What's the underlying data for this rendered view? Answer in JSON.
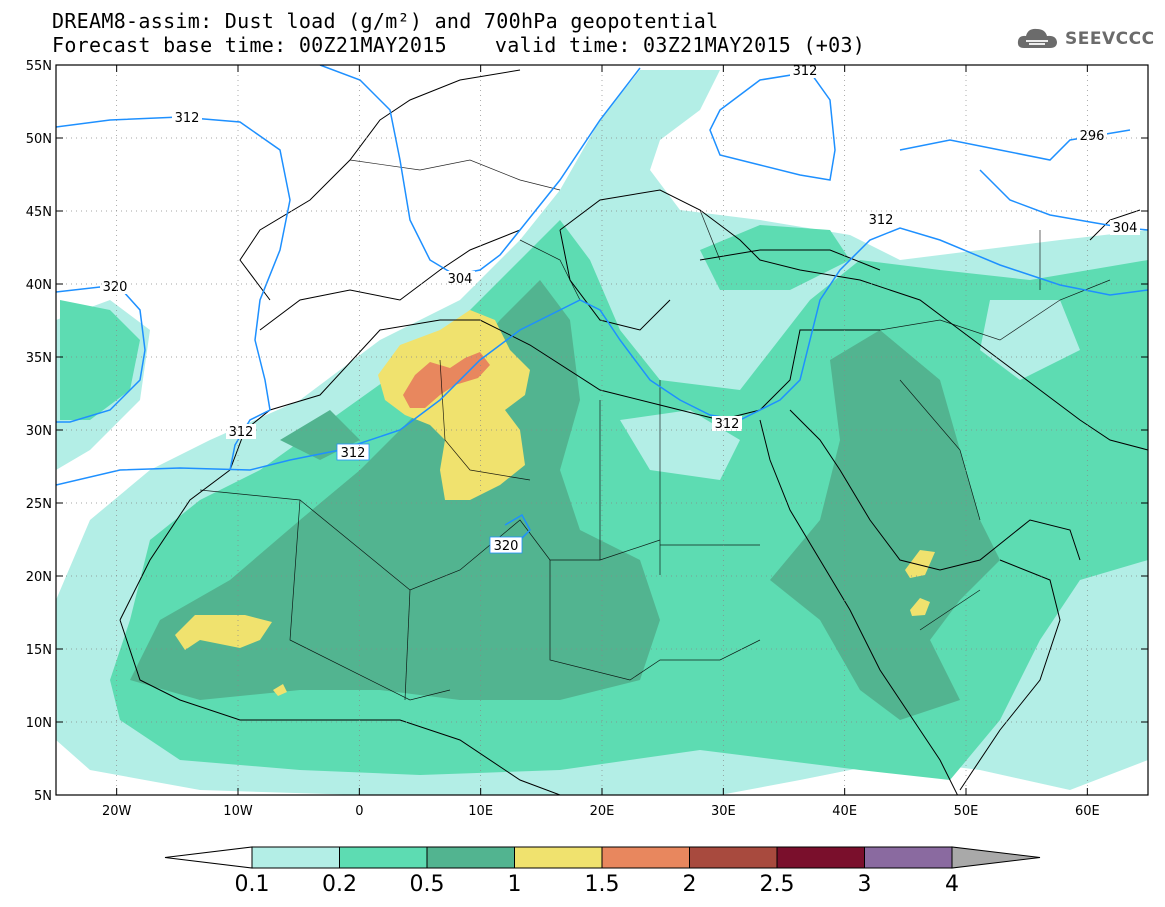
{
  "header": {
    "title_line1": "DREAM8-assim: Dust load (g/m²) and 700hPa geopotential",
    "base_time": "Forecast base time: 00Z21MAY2015",
    "valid_time": "valid time: 03Z21MAY2015 (+03)"
  },
  "logo": {
    "text": "SEEVCCC",
    "icon": "cloud-icon"
  },
  "axes": {
    "lat_ticks": [
      "55N",
      "50N",
      "45N",
      "40N",
      "35N",
      "30N",
      "25N",
      "20N",
      "15N",
      "10N",
      "5N"
    ],
    "lon_ticks": [
      "20W",
      "10W",
      "0",
      "10E",
      "20E",
      "30E",
      "40E",
      "50E",
      "60E"
    ],
    "lat_range": [
      5,
      55
    ],
    "lon_range": [
      -25,
      65
    ]
  },
  "contour_labels": [
    "312",
    "312",
    "312",
    "312",
    "312",
    "312",
    "320",
    "320",
    "304",
    "304",
    "296",
    "312"
  ],
  "colorbar": {
    "labels": [
      "0.1",
      "0.2",
      "0.5",
      "1",
      "1.5",
      "2",
      "2.5",
      "3",
      "4"
    ],
    "colors": [
      "#b3eee6",
      "#5ddcb2",
      "#52b490",
      "#f0e26e",
      "#e8875e",
      "#a84a3e",
      "#7a0f2c",
      "#8a6aa0",
      "#a9a9a9"
    ]
  }
}
